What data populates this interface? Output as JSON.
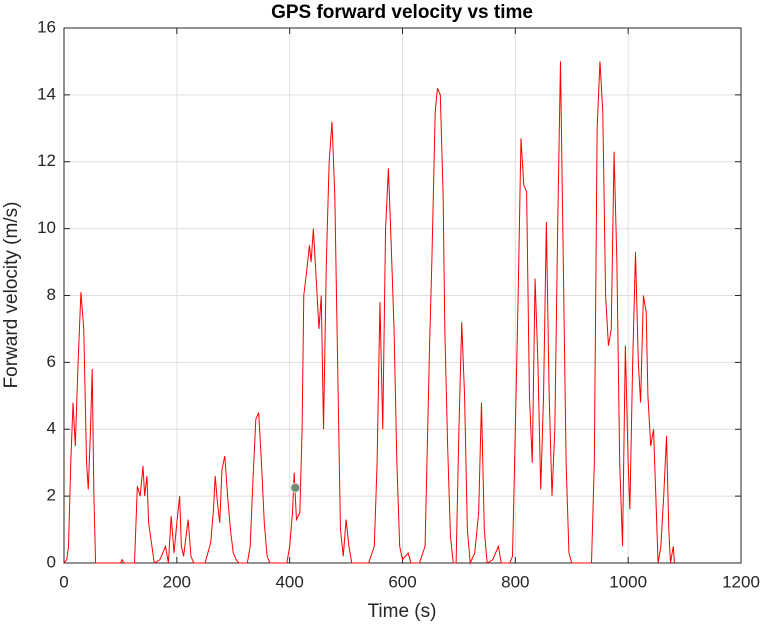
{
  "chart_data": {
    "type": "line",
    "title": "GPS forward velocity vs time",
    "x_label": "Time (s)",
    "y_label": "Forward velocity (m/s)",
    "xlim": [
      0,
      1200
    ],
    "xticks": [
      0,
      200,
      400,
      600,
      800,
      1000,
      1200
    ],
    "ylim": [
      0,
      16
    ],
    "yticks": [
      0,
      2,
      4,
      6,
      8,
      10,
      12,
      14,
      16
    ],
    "grid": true,
    "series": [
      {
        "color": "#ff0000",
        "x": [
          0,
          5,
          8,
          12,
          16,
          20,
          25,
          30,
          35,
          40,
          43,
          47,
          50,
          53,
          56,
          100,
          103,
          106,
          125,
          130,
          135,
          140,
          143,
          147,
          150,
          155,
          160,
          170,
          180,
          185,
          190,
          195,
          200,
          205,
          208,
          212,
          220,
          225,
          230,
          250,
          260,
          265,
          268,
          272,
          276,
          280,
          285,
          290,
          295,
          300,
          305,
          310,
          325,
          330,
          335,
          340,
          345,
          350,
          355,
          360,
          365,
          395,
          400,
          405,
          408,
          412,
          418,
          422,
          425,
          430,
          435,
          438,
          442,
          447,
          452,
          456,
          460,
          465,
          470,
          475,
          480,
          485,
          490,
          495,
          500,
          505,
          510,
          540,
          550,
          555,
          560,
          565,
          570,
          575,
          580,
          585,
          590,
          595,
          600,
          610,
          615,
          630,
          640,
          648,
          652,
          658,
          662,
          667,
          672,
          675,
          680,
          685,
          690,
          695,
          700,
          705,
          710,
          715,
          720,
          728,
          735,
          740,
          745,
          750,
          760,
          770,
          775,
          790,
          795,
          800,
          805,
          810,
          815,
          820,
          825,
          830,
          835,
          840,
          845,
          850,
          855,
          860,
          865,
          870,
          875,
          880,
          885,
          890,
          895,
          900,
          935,
          940,
          945,
          950,
          955,
          960,
          965,
          970,
          975,
          980,
          985,
          990,
          995,
          1000,
          1003,
          1008,
          1013,
          1018,
          1022,
          1027,
          1032,
          1035,
          1040,
          1045,
          1050,
          1053,
          1058,
          1063,
          1068,
          1072,
          1075,
          1080,
          1082
        ],
        "values": [
          0,
          0.1,
          0.5,
          3,
          4.8,
          3.5,
          6,
          8.1,
          7,
          3,
          2.2,
          4,
          5.8,
          2,
          0,
          0,
          0.1,
          0,
          0,
          2.3,
          2,
          2.9,
          2,
          2.6,
          1.2,
          0.6,
          0,
          0.1,
          0.5,
          0,
          1.4,
          0.3,
          1.2,
          2,
          0.5,
          0.2,
          1.3,
          0.2,
          0,
          0,
          0.6,
          1.6,
          2.6,
          1.8,
          1.2,
          2.8,
          3.2,
          2,
          1,
          0.3,
          0.1,
          0,
          0,
          0.5,
          2.5,
          4.3,
          4.5,
          3,
          1.2,
          0.2,
          0,
          0,
          0.5,
          1.5,
          2.7,
          1.3,
          1.5,
          4,
          8,
          8.7,
          9.5,
          9,
          10,
          8.5,
          7,
          8,
          4,
          9,
          12,
          13.2,
          11,
          6,
          1,
          0.2,
          1.3,
          0.5,
          0,
          0,
          0.5,
          3,
          7.8,
          4,
          10,
          11.8,
          9.5,
          7,
          3,
          0.5,
          0.1,
          0.3,
          0,
          0,
          0.5,
          6.5,
          9,
          13.5,
          14.2,
          14,
          11,
          7,
          3.5,
          0.8,
          0,
          0,
          4,
          7.2,
          5,
          1,
          0,
          0.3,
          1.5,
          4.8,
          1,
          0,
          0.1,
          0.5,
          0,
          0,
          0.2,
          4,
          8,
          12.7,
          11.3,
          11.1,
          5,
          3,
          8.5,
          6,
          2.2,
          5,
          10.2,
          5,
          2,
          4,
          10,
          15,
          9,
          3,
          0.3,
          0,
          0,
          3,
          13,
          15,
          13.5,
          8,
          6.5,
          7,
          12.3,
          9,
          3,
          0.5,
          6.5,
          3,
          1.6,
          6,
          9.3,
          6,
          4.8,
          8,
          7.5,
          5,
          3.5,
          4,
          1.5,
          0,
          0.5,
          2,
          3.8,
          1,
          0,
          0.5,
          0
        ]
      }
    ],
    "highlight": {
      "x": 410,
      "y": 2.25,
      "color": "#6e8b74"
    }
  }
}
